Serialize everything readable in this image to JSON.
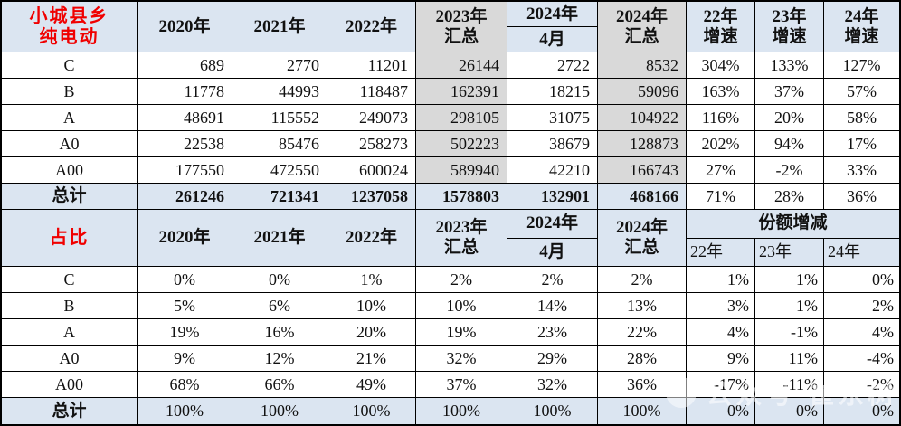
{
  "colors": {
    "header_blue": "#dbe5f1",
    "highlight_gray": "#d9d9d9",
    "title_red": "#f00000",
    "border": "#000000"
  },
  "section1": {
    "header": {
      "title_line1": "小城县乡",
      "title_line2": "纯电动",
      "y2020": "2020年",
      "y2021": "2021年",
      "y2022": "2022年",
      "y2023_l1": "2023年",
      "y2023_l2": "汇总",
      "y2024m_top": "2024年",
      "y2024m_bottom": "4月",
      "y2024h_l1": "2024年",
      "y2024h_l2": "汇总",
      "g22_l1": "22年",
      "g22_l2": "增速",
      "g23_l1": "23年",
      "g23_l2": "增速",
      "g24_l1": "24年",
      "g24_l2": "增速"
    },
    "rows": [
      {
        "label": "C",
        "values": [
          "689",
          "2770",
          "11201",
          "26144",
          "2722",
          "8532",
          "304%",
          "133%",
          "127%"
        ]
      },
      {
        "label": "B",
        "values": [
          "11778",
          "44993",
          "118487",
          "162391",
          "18215",
          "59096",
          "163%",
          "37%",
          "57%"
        ]
      },
      {
        "label": "A",
        "values": [
          "48691",
          "115552",
          "249073",
          "298105",
          "31075",
          "104922",
          "116%",
          "20%",
          "58%"
        ]
      },
      {
        "label": "A0",
        "values": [
          "22538",
          "85476",
          "258273",
          "502223",
          "38679",
          "128873",
          "202%",
          "94%",
          "17%"
        ]
      },
      {
        "label": "A00",
        "values": [
          "177550",
          "472550",
          "600024",
          "589940",
          "42210",
          "166743",
          "27%",
          "-2%",
          "33%"
        ]
      },
      {
        "label": "总计",
        "total": true,
        "values": [
          "261246",
          "721341",
          "1237058",
          "1578803",
          "132901",
          "468166",
          "71%",
          "28%",
          "36%"
        ]
      }
    ]
  },
  "section2": {
    "header": {
      "title": "占比",
      "y2020": "2020年",
      "y2021": "2021年",
      "y2022": "2022年",
      "y2023_l1": "2023年",
      "y2023_l2": "汇总",
      "y2024m_top": "2024年",
      "y2024m_bottom": "4月",
      "y2024h_l1": "2024年",
      "y2024h_l2": "汇总",
      "share_group": "份额增减",
      "s22": "22年",
      "s23": "23年",
      "s24": "24年"
    },
    "rows": [
      {
        "label": "C",
        "values": [
          "0%",
          "0%",
          "1%",
          "2%",
          "2%",
          "2%",
          "1%",
          "1%",
          "0%"
        ]
      },
      {
        "label": "B",
        "values": [
          "5%",
          "6%",
          "10%",
          "10%",
          "14%",
          "13%",
          "3%",
          "1%",
          "2%"
        ]
      },
      {
        "label": "A",
        "values": [
          "19%",
          "16%",
          "20%",
          "19%",
          "23%",
          "22%",
          "4%",
          "-1%",
          "4%"
        ]
      },
      {
        "label": "A0",
        "values": [
          "9%",
          "12%",
          "21%",
          "32%",
          "29%",
          "28%",
          "9%",
          "11%",
          "-4%"
        ]
      },
      {
        "label": "A00",
        "values": [
          "68%",
          "66%",
          "49%",
          "37%",
          "32%",
          "36%",
          "-17%",
          "-11%",
          "-2%"
        ]
      },
      {
        "label": "总计",
        "total": true,
        "values": [
          "100%",
          "100%",
          "100%",
          "100%",
          "100%",
          "100%",
          "0%",
          "0%",
          "0%"
        ]
      }
    ]
  },
  "watermark": {
    "text": "公众号·崔东树"
  },
  "chart_data": [
    {
      "type": "table",
      "title": "小城县乡纯电动",
      "columns": [
        "",
        "2020年",
        "2021年",
        "2022年",
        "2023年汇总",
        "2024年4月",
        "2024年汇总",
        "22年增速",
        "23年增速",
        "24年增速"
      ],
      "rows": [
        [
          "C",
          689,
          2770,
          11201,
          26144,
          2722,
          8532,
          "304%",
          "133%",
          "127%"
        ],
        [
          "B",
          11778,
          44993,
          118487,
          162391,
          18215,
          59096,
          "163%",
          "37%",
          "57%"
        ],
        [
          "A",
          48691,
          115552,
          249073,
          298105,
          31075,
          104922,
          "116%",
          "20%",
          "58%"
        ],
        [
          "A0",
          22538,
          85476,
          258273,
          502223,
          38679,
          128873,
          "202%",
          "94%",
          "17%"
        ],
        [
          "A00",
          177550,
          472550,
          600024,
          589940,
          42210,
          166743,
          "27%",
          "-2%",
          "33%"
        ],
        [
          "总计",
          261246,
          721341,
          1237058,
          1578803,
          132901,
          468166,
          "71%",
          "28%",
          "36%"
        ]
      ]
    },
    {
      "type": "table",
      "title": "占比",
      "columns": [
        "",
        "2020年",
        "2021年",
        "2022年",
        "2023年汇总",
        "2024年4月",
        "2024年汇总",
        "份额增减22年",
        "份额增减23年",
        "份额增减24年"
      ],
      "rows": [
        [
          "C",
          "0%",
          "0%",
          "1%",
          "2%",
          "2%",
          "2%",
          "1%",
          "1%",
          "0%"
        ],
        [
          "B",
          "5%",
          "6%",
          "10%",
          "10%",
          "14%",
          "13%",
          "3%",
          "1%",
          "2%"
        ],
        [
          "A",
          "19%",
          "16%",
          "20%",
          "19%",
          "23%",
          "22%",
          "4%",
          "-1%",
          "4%"
        ],
        [
          "A0",
          "9%",
          "12%",
          "21%",
          "32%",
          "29%",
          "28%",
          "9%",
          "11%",
          "-4%"
        ],
        [
          "A00",
          "68%",
          "66%",
          "49%",
          "37%",
          "32%",
          "36%",
          "-17%",
          "-11%",
          "-2%"
        ],
        [
          "总计",
          "100%",
          "100%",
          "100%",
          "100%",
          "100%",
          "100%",
          "0%",
          "0%",
          "0%"
        ]
      ]
    }
  ]
}
